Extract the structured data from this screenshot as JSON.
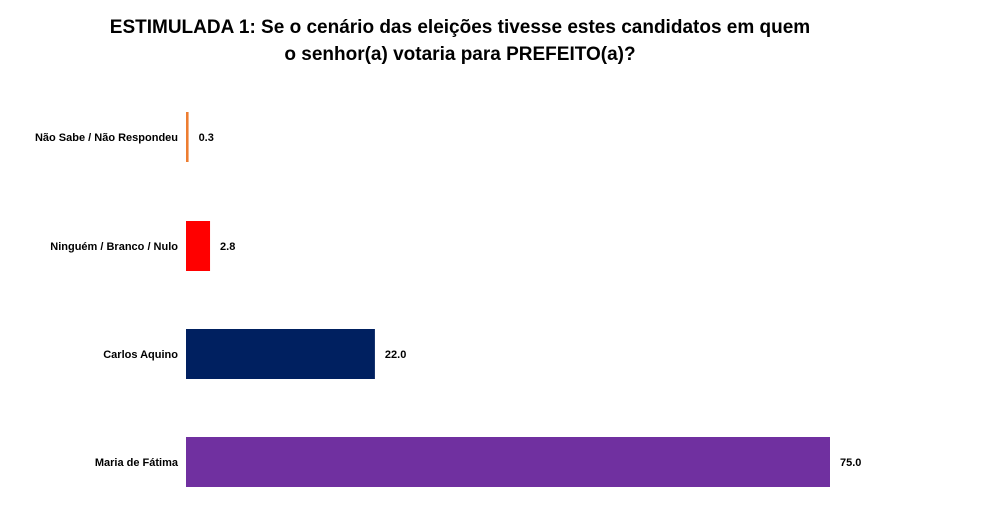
{
  "chart_data": {
    "type": "bar",
    "orientation": "horizontal",
    "title_lines": [
      "ESTIMULADA 1: Se o cenário das eleições tivesse estes candidatos em quem",
      "o senhor(a) votaria para PREFEITO(a)?"
    ],
    "categories": [
      "Não Sabe / Não Respondeu",
      "Ninguém / Branco / Nulo",
      "Carlos Aquino",
      "Maria de Fátima"
    ],
    "values": [
      0.3,
      2.8,
      22.0,
      75.0
    ],
    "value_labels": [
      "0.3",
      "2.8",
      "22.0",
      "75.0"
    ],
    "colors": [
      "#ed7d31",
      "#ff0000",
      "#002060",
      "#7030a0"
    ],
    "xlim": [
      0,
      75
    ],
    "grid": false,
    "legend": "none"
  }
}
